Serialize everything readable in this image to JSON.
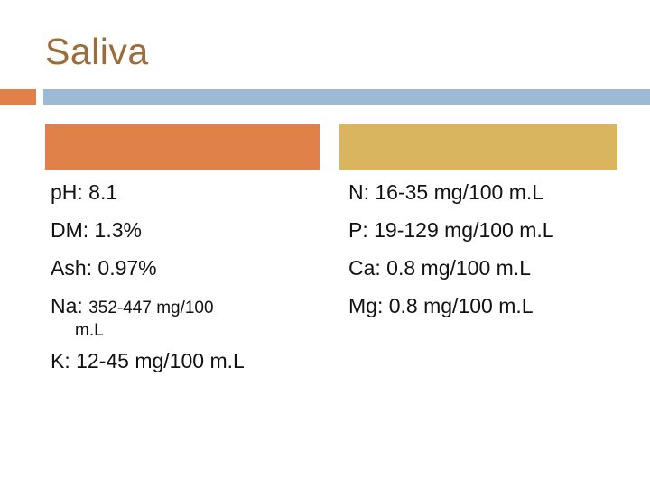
{
  "title": "Saliva",
  "colors": {
    "title": "#9C6C3A",
    "orange": "#E0814A",
    "gold": "#D9B55E",
    "blue": "#9DBAD5"
  },
  "left_column": {
    "ph": "pH: 8.1",
    "dm": "DM: 1.3%",
    "ash": "Ash: 0.97%",
    "na_label": "Na: ",
    "na_value": "352-447 mg/100",
    "na_unit": "m.L",
    "k": "K: 12-45 mg/100 m.L"
  },
  "right_column": {
    "n": "N: 16-35 mg/100 m.L",
    "p": "P: 19-129 mg/100 m.L",
    "ca": "Ca: 0.8 mg/100 m.L",
    "mg": "Mg: 0.8 mg/100 m.L"
  }
}
